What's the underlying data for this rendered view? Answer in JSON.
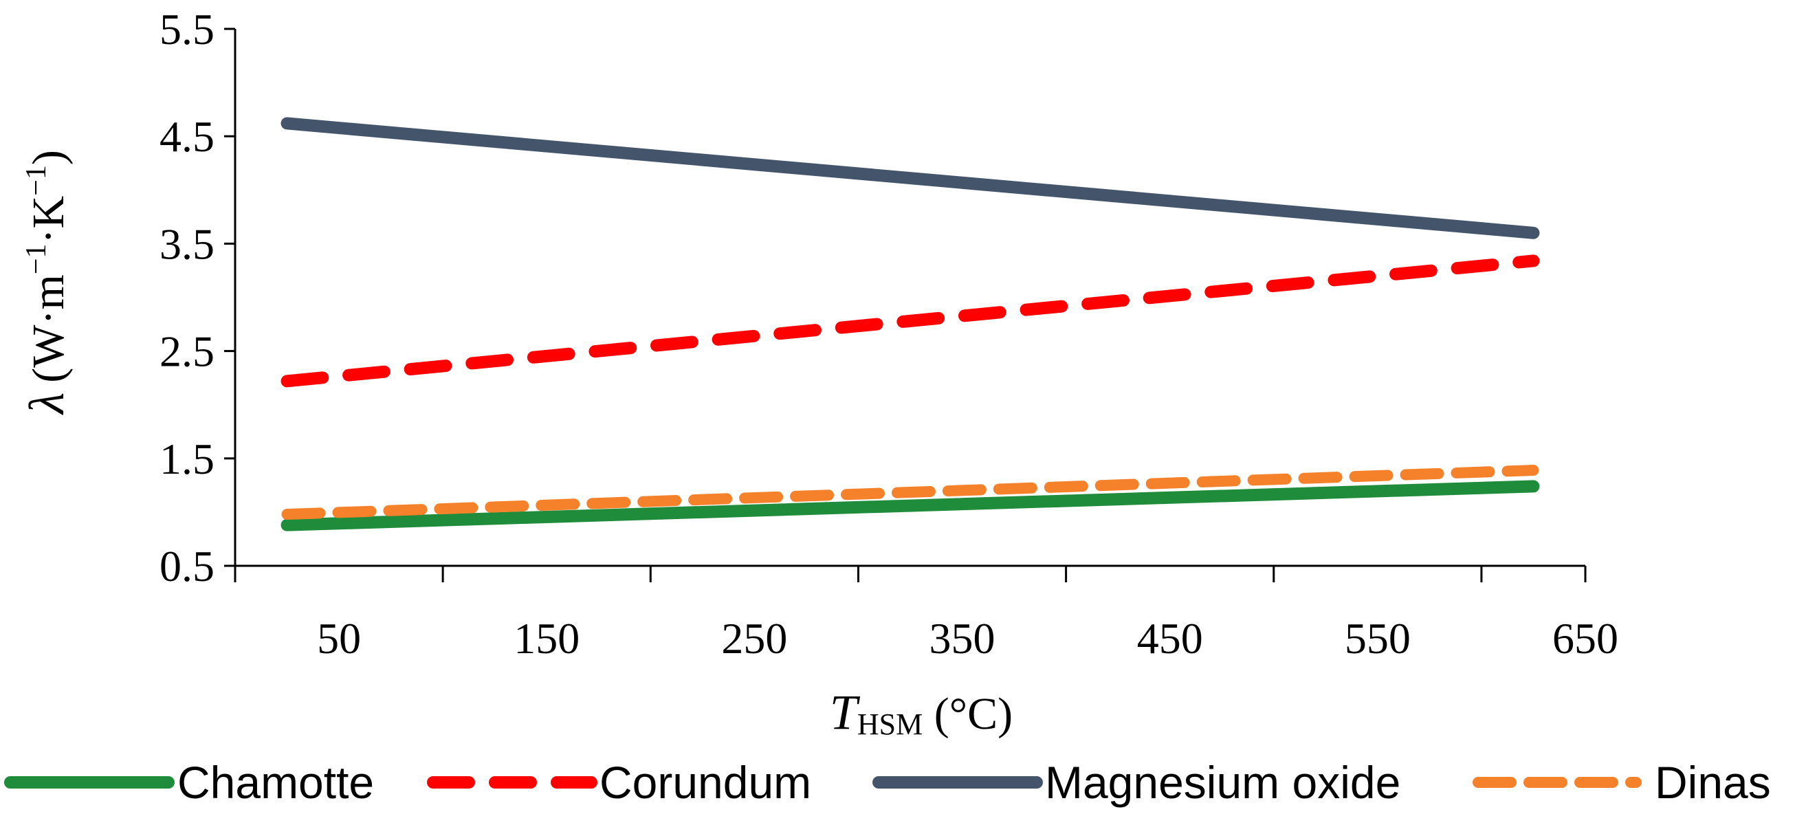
{
  "chart_data": {
    "type": "line",
    "title": "",
    "xlabel": {
      "main": "T",
      "subscript": "HSM",
      "suffix": " (°C)"
    },
    "ylabel": {
      "symbol": "λ",
      "unit": "(W·m",
      "exp1": "−1",
      "mid": "·K",
      "exp2": "−1",
      "close": ")"
    },
    "xlim": [
      0,
      650
    ],
    "ylim": [
      0.5,
      5.5
    ],
    "x_ticks": [
      50,
      150,
      250,
      350,
      450,
      550,
      650
    ],
    "x_tick_labels": [
      "50",
      "150",
      "250",
      "350",
      "450",
      "550",
      "650"
    ],
    "x_minor_ticks": [
      0,
      100,
      200,
      300,
      400,
      500,
      600
    ],
    "y_ticks": [
      0.5,
      1.5,
      2.5,
      3.5,
      4.5,
      5.5
    ],
    "y_tick_labels": [
      "0.5",
      "1.5",
      "2.5",
      "3.5",
      "4.5",
      "5.5"
    ],
    "x": [
      25,
      625
    ],
    "series": [
      {
        "name": "Chamotte",
        "values": [
          0.88,
          1.24
        ],
        "color": "#1e8c3a",
        "dash": "solid",
        "key": "chamotte"
      },
      {
        "name": "Corundum",
        "values": [
          2.22,
          3.34
        ],
        "color": "#ff0000",
        "dash": "dashed",
        "key": "corundum"
      },
      {
        "name": "Magnesium oxide",
        "values": [
          4.62,
          3.6
        ],
        "color": "#44546a",
        "dash": "solid",
        "key": "magnesium-oxide"
      },
      {
        "name": "Dinas",
        "values": [
          0.98,
          1.39
        ],
        "color": "#f5812a",
        "dash": "dashed",
        "key": "dinas"
      }
    ],
    "legend_position": "bottom"
  }
}
